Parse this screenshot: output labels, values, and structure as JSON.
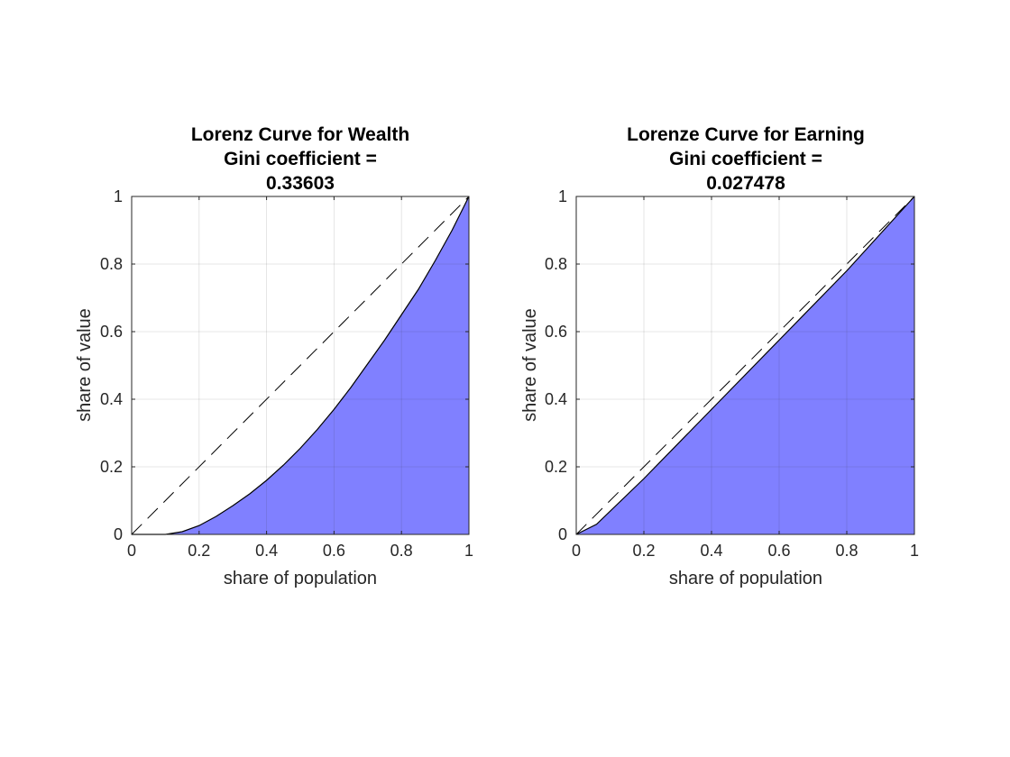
{
  "chart_data": [
    {
      "type": "area",
      "title": [
        "Lorenz Curve for Wealth",
        "Gini coefficient =",
        "0.33603"
      ],
      "xlabel": "share of population",
      "ylabel": "share of value",
      "xlim": [
        0,
        1
      ],
      "ylim": [
        0,
        1
      ],
      "xticks": [
        "0",
        "0.2",
        "0.4",
        "0.6",
        "0.8",
        "1"
      ],
      "yticks": [
        "0",
        "0.2",
        "0.4",
        "0.6",
        "0.8",
        "1"
      ],
      "grid": true,
      "fill_color": "#8080ff",
      "reference_line": {
        "style": "dashed",
        "x": [
          0,
          1
        ],
        "y": [
          0,
          1
        ]
      },
      "series": [
        {
          "x": [
            0,
            0.1,
            0.15,
            0.2,
            0.25,
            0.3,
            0.35,
            0.4,
            0.45,
            0.5,
            0.55,
            0.6,
            0.65,
            0.7,
            0.75,
            0.8,
            0.85,
            0.9,
            0.95,
            1.0
          ],
          "values": [
            0,
            0,
            0.008,
            0.026,
            0.053,
            0.085,
            0.12,
            0.16,
            0.205,
            0.255,
            0.31,
            0.37,
            0.435,
            0.505,
            0.575,
            0.65,
            0.725,
            0.81,
            0.9,
            1.0
          ]
        }
      ]
    },
    {
      "type": "area",
      "title": [
        "Lorenze Curve for Earning",
        "Gini coefficient =",
        "0.027478"
      ],
      "xlabel": "share of population",
      "ylabel": "share of value",
      "xlim": [
        0,
        1
      ],
      "ylim": [
        0,
        1
      ],
      "xticks": [
        "0",
        "0.2",
        "0.4",
        "0.6",
        "0.8",
        "1"
      ],
      "yticks": [
        "0",
        "0.2",
        "0.4",
        "0.6",
        "0.8",
        "1"
      ],
      "grid": true,
      "fill_color": "#8080ff",
      "reference_line": {
        "style": "dashed",
        "x": [
          0,
          1
        ],
        "y": [
          0,
          1
        ]
      },
      "series": [
        {
          "x": [
            0,
            0.06,
            0.2,
            0.4,
            0.6,
            0.8,
            0.9,
            1.0
          ],
          "values": [
            0,
            0.03,
            0.165,
            0.37,
            0.575,
            0.78,
            0.89,
            1.0
          ]
        }
      ]
    }
  ]
}
